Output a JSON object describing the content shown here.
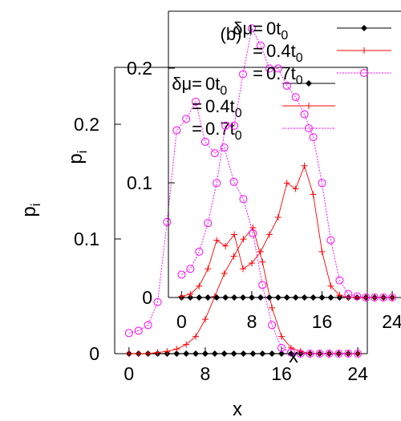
{
  "chart_data": [
    {
      "type": "line",
      "panel_label": "",
      "xlabel": "x",
      "ylabel": "p",
      "ylabel_sub": "i",
      "xlim": [
        -1.5,
        25
      ],
      "ylim": [
        0,
        0.25
      ],
      "x_ticks": [
        "0",
        "8",
        "16",
        "24"
      ],
      "y_ticks": [
        "0",
        "0.1",
        "0.2"
      ],
      "legend_position": "top",
      "legend": [
        {
          "prefix": "δμ=",
          "label": "0",
          "unit": "t",
          "sub": "0"
        },
        {
          "prefix": "=",
          "label": "0.4",
          "unit": "t",
          "sub": "0"
        },
        {
          "prefix": "=",
          "label": "0.7",
          "unit": "t",
          "sub": "0"
        }
      ],
      "x": [
        0,
        1,
        2,
        3,
        4,
        5,
        6,
        7,
        8,
        9,
        10,
        11,
        12,
        13,
        14,
        15,
        16,
        17,
        18,
        19,
        20,
        21,
        22,
        23,
        24
      ],
      "series": [
        {
          "color": "#000000",
          "marker": "diamond",
          "values": [
            0,
            0,
            0,
            0,
            0,
            0,
            0,
            0,
            0,
            0,
            0,
            0,
            0,
            0,
            0,
            0,
            0,
            0,
            0,
            0,
            0,
            0,
            0,
            0,
            0
          ]
        },
        {
          "color": "#ff0000",
          "marker": "plus",
          "values": [
            0,
            0,
            0,
            0.001,
            0.002,
            0.004,
            0.008,
            0.015,
            0.03,
            0.05,
            0.07,
            0.085,
            0.1,
            0.11,
            0.08,
            0.04,
            0.015,
            0.005,
            0.002,
            0,
            0,
            0,
            0,
            0,
            0
          ]
        },
        {
          "color": "#ff00ff",
          "marker": "circle",
          "values": [
            0.018,
            0.02,
            0.025,
            0.045,
            0.115,
            0.195,
            0.205,
            0.22,
            0.185,
            0.175,
            0.18,
            0.15,
            0.135,
            0.105,
            0.06,
            0.025,
            0.005,
            0.001,
            0,
            0,
            0,
            0,
            0,
            0,
            0
          ]
        }
      ]
    },
    {
      "type": "line",
      "panel_label": "(b)",
      "xlabel": "x",
      "ylabel": "p",
      "ylabel_sub": "i",
      "xlim": [
        -1.5,
        25
      ],
      "ylim": [
        0,
        0.25
      ],
      "x_ticks": [
        "0",
        "8",
        "16",
        "24"
      ],
      "y_ticks": [
        "0",
        "0.1",
        "0.2"
      ],
      "legend_position": "top-right",
      "legend": [
        {
          "prefix": "δμ=",
          "label": "0",
          "unit": "t",
          "sub": "0"
        },
        {
          "prefix": "=",
          "label": "0.4",
          "unit": "t",
          "sub": "0"
        },
        {
          "prefix": "=",
          "label": "0.7",
          "unit": "t",
          "sub": "0"
        }
      ],
      "x": [
        0,
        1,
        2,
        3,
        4,
        5,
        6,
        7,
        8,
        9,
        10,
        11,
        12,
        13,
        14,
        15,
        16,
        17,
        18,
        19,
        20,
        21,
        22,
        23,
        24
      ],
      "series": [
        {
          "color": "#000000",
          "marker": "diamond",
          "values": [
            0,
            0,
            0,
            0,
            0,
            0,
            0,
            0,
            0,
            0,
            0,
            0,
            0,
            0,
            0,
            0,
            0,
            0,
            0,
            0,
            0,
            0,
            0,
            0,
            0
          ]
        },
        {
          "color": "#ff0000",
          "marker": "plus",
          "values": [
            0.001,
            0.003,
            0.01,
            0.025,
            0.05,
            0.045,
            0.055,
            0.025,
            0.03,
            0.04,
            0.055,
            0.07,
            0.1,
            0.095,
            0.115,
            0.09,
            0.04,
            0.01,
            0.002,
            0,
            0,
            0,
            0,
            0,
            0
          ]
        },
        {
          "color": "#ff00ff",
          "marker": "circle",
          "values": [
            0.02,
            0.025,
            0.04,
            0.065,
            0.1,
            0.15,
            0.15,
            0.195,
            0.235,
            0.22,
            0.2,
            0.2,
            0.185,
            0.175,
            0.16,
            0.14,
            0.1,
            0.05,
            0.015,
            0.003,
            0.001,
            0,
            0,
            0,
            0
          ]
        }
      ]
    }
  ]
}
